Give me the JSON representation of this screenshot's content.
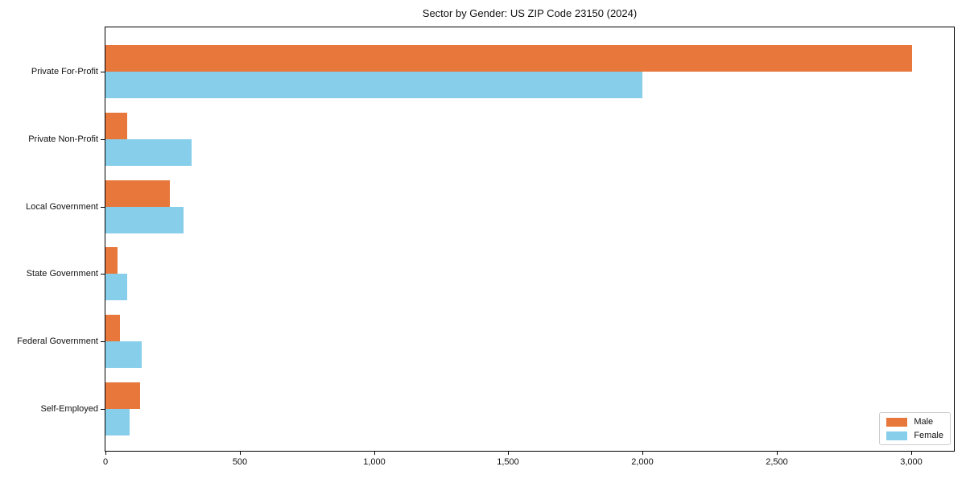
{
  "chart_data": {
    "type": "bar",
    "orientation": "horizontal",
    "title": "Sector by Gender: US ZIP Code 23150 (2024)",
    "categories": [
      "Private For-Profit",
      "Private Non-Profit",
      "Local Government",
      "State Government",
      "Federal Government",
      "Self-Employed"
    ],
    "series": [
      {
        "name": "Male",
        "color": "#E8773B",
        "values": [
          3005,
          80,
          240,
          45,
          55,
          130
        ]
      },
      {
        "name": "Female",
        "color": "#87CEEB",
        "values": [
          2000,
          320,
          290,
          80,
          135,
          90
        ]
      }
    ],
    "xlim": [
      0,
      3160
    ],
    "xticks": [
      0,
      500,
      1000,
      1500,
      2000,
      2500,
      3000
    ],
    "xtick_labels": [
      "0",
      "500",
      "1,000",
      "1,500",
      "2,000",
      "2,500",
      "3,000"
    ],
    "xlabel": "",
    "ylabel": "",
    "grid": false,
    "legend_position": "lower right"
  }
}
